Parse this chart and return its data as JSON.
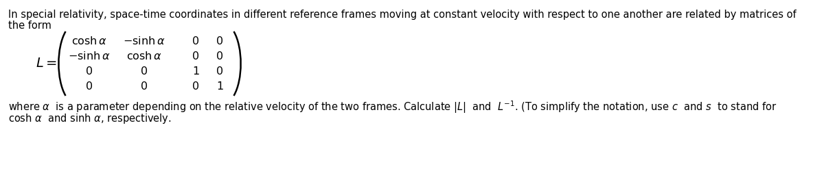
{
  "bg_color": "#ffffff",
  "text_color": "#000000",
  "fig_width": 12.0,
  "fig_height": 2.72,
  "dpi": 100,
  "top_text": "In special relativity, space-time coordinates in different reference frames moving at constant velocity with respect to one another are related by matrices of",
  "line2": "the form",
  "bottom_line1": "where $\\alpha$  is a parameter depending on the relative velocity of the two frames. Calculate $|L|$  and  $L^{-1}$. (To simplify the notation, use $c$  and $s$  to stand for",
  "bottom_line2": "cosh $\\alpha$  and sinh $\\alpha$, respectively.",
  "font_size": 10.5,
  "matrix_font_size": 11.5,
  "label_font_size": 12
}
